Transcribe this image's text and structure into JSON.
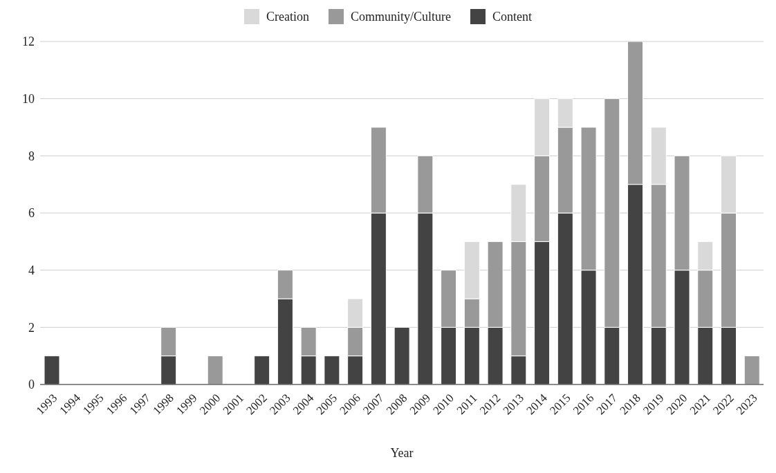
{
  "chart_data": {
    "type": "bar",
    "stacked": true,
    "xlabel": "Year",
    "categories": [
      "1993",
      "1994",
      "1995",
      "1996",
      "1997",
      "1998",
      "1999",
      "2000",
      "2001",
      "2002",
      "2003",
      "2004",
      "2005",
      "2006",
      "2007",
      "2008",
      "2009",
      "2010",
      "2011",
      "2012",
      "2013",
      "2014",
      "2015",
      "2016",
      "2017",
      "2018",
      "2019",
      "2020",
      "2021",
      "2022",
      "2023"
    ],
    "series": [
      {
        "name": "Content",
        "color": "#434343",
        "values": [
          1,
          0,
          0,
          0,
          0,
          1,
          0,
          0,
          0,
          1,
          3,
          1,
          1,
          1,
          6,
          2,
          6,
          2,
          2,
          2,
          1,
          5,
          6,
          4,
          2,
          7,
          2,
          4,
          2,
          2,
          0
        ]
      },
      {
        "name": "Community/Culture",
        "color": "#999999",
        "values": [
          0,
          0,
          0,
          0,
          0,
          1,
          0,
          1,
          0,
          0,
          1,
          1,
          0,
          1,
          3,
          0,
          2,
          2,
          1,
          3,
          4,
          3,
          3,
          5,
          8,
          5,
          5,
          4,
          2,
          4,
          1
        ]
      },
      {
        "name": "Creation",
        "color": "#d9d9d9",
        "values": [
          0,
          0,
          0,
          0,
          0,
          0,
          0,
          0,
          0,
          0,
          0,
          0,
          0,
          1,
          0,
          0,
          0,
          0,
          2,
          0,
          2,
          2,
          1,
          0,
          0,
          0,
          2,
          0,
          1,
          2,
          0
        ]
      }
    ],
    "ylim": [
      0,
      12
    ],
    "yticks": [
      0,
      2,
      4,
      6,
      8,
      10,
      12
    ],
    "grid": "y",
    "legend": "top"
  }
}
